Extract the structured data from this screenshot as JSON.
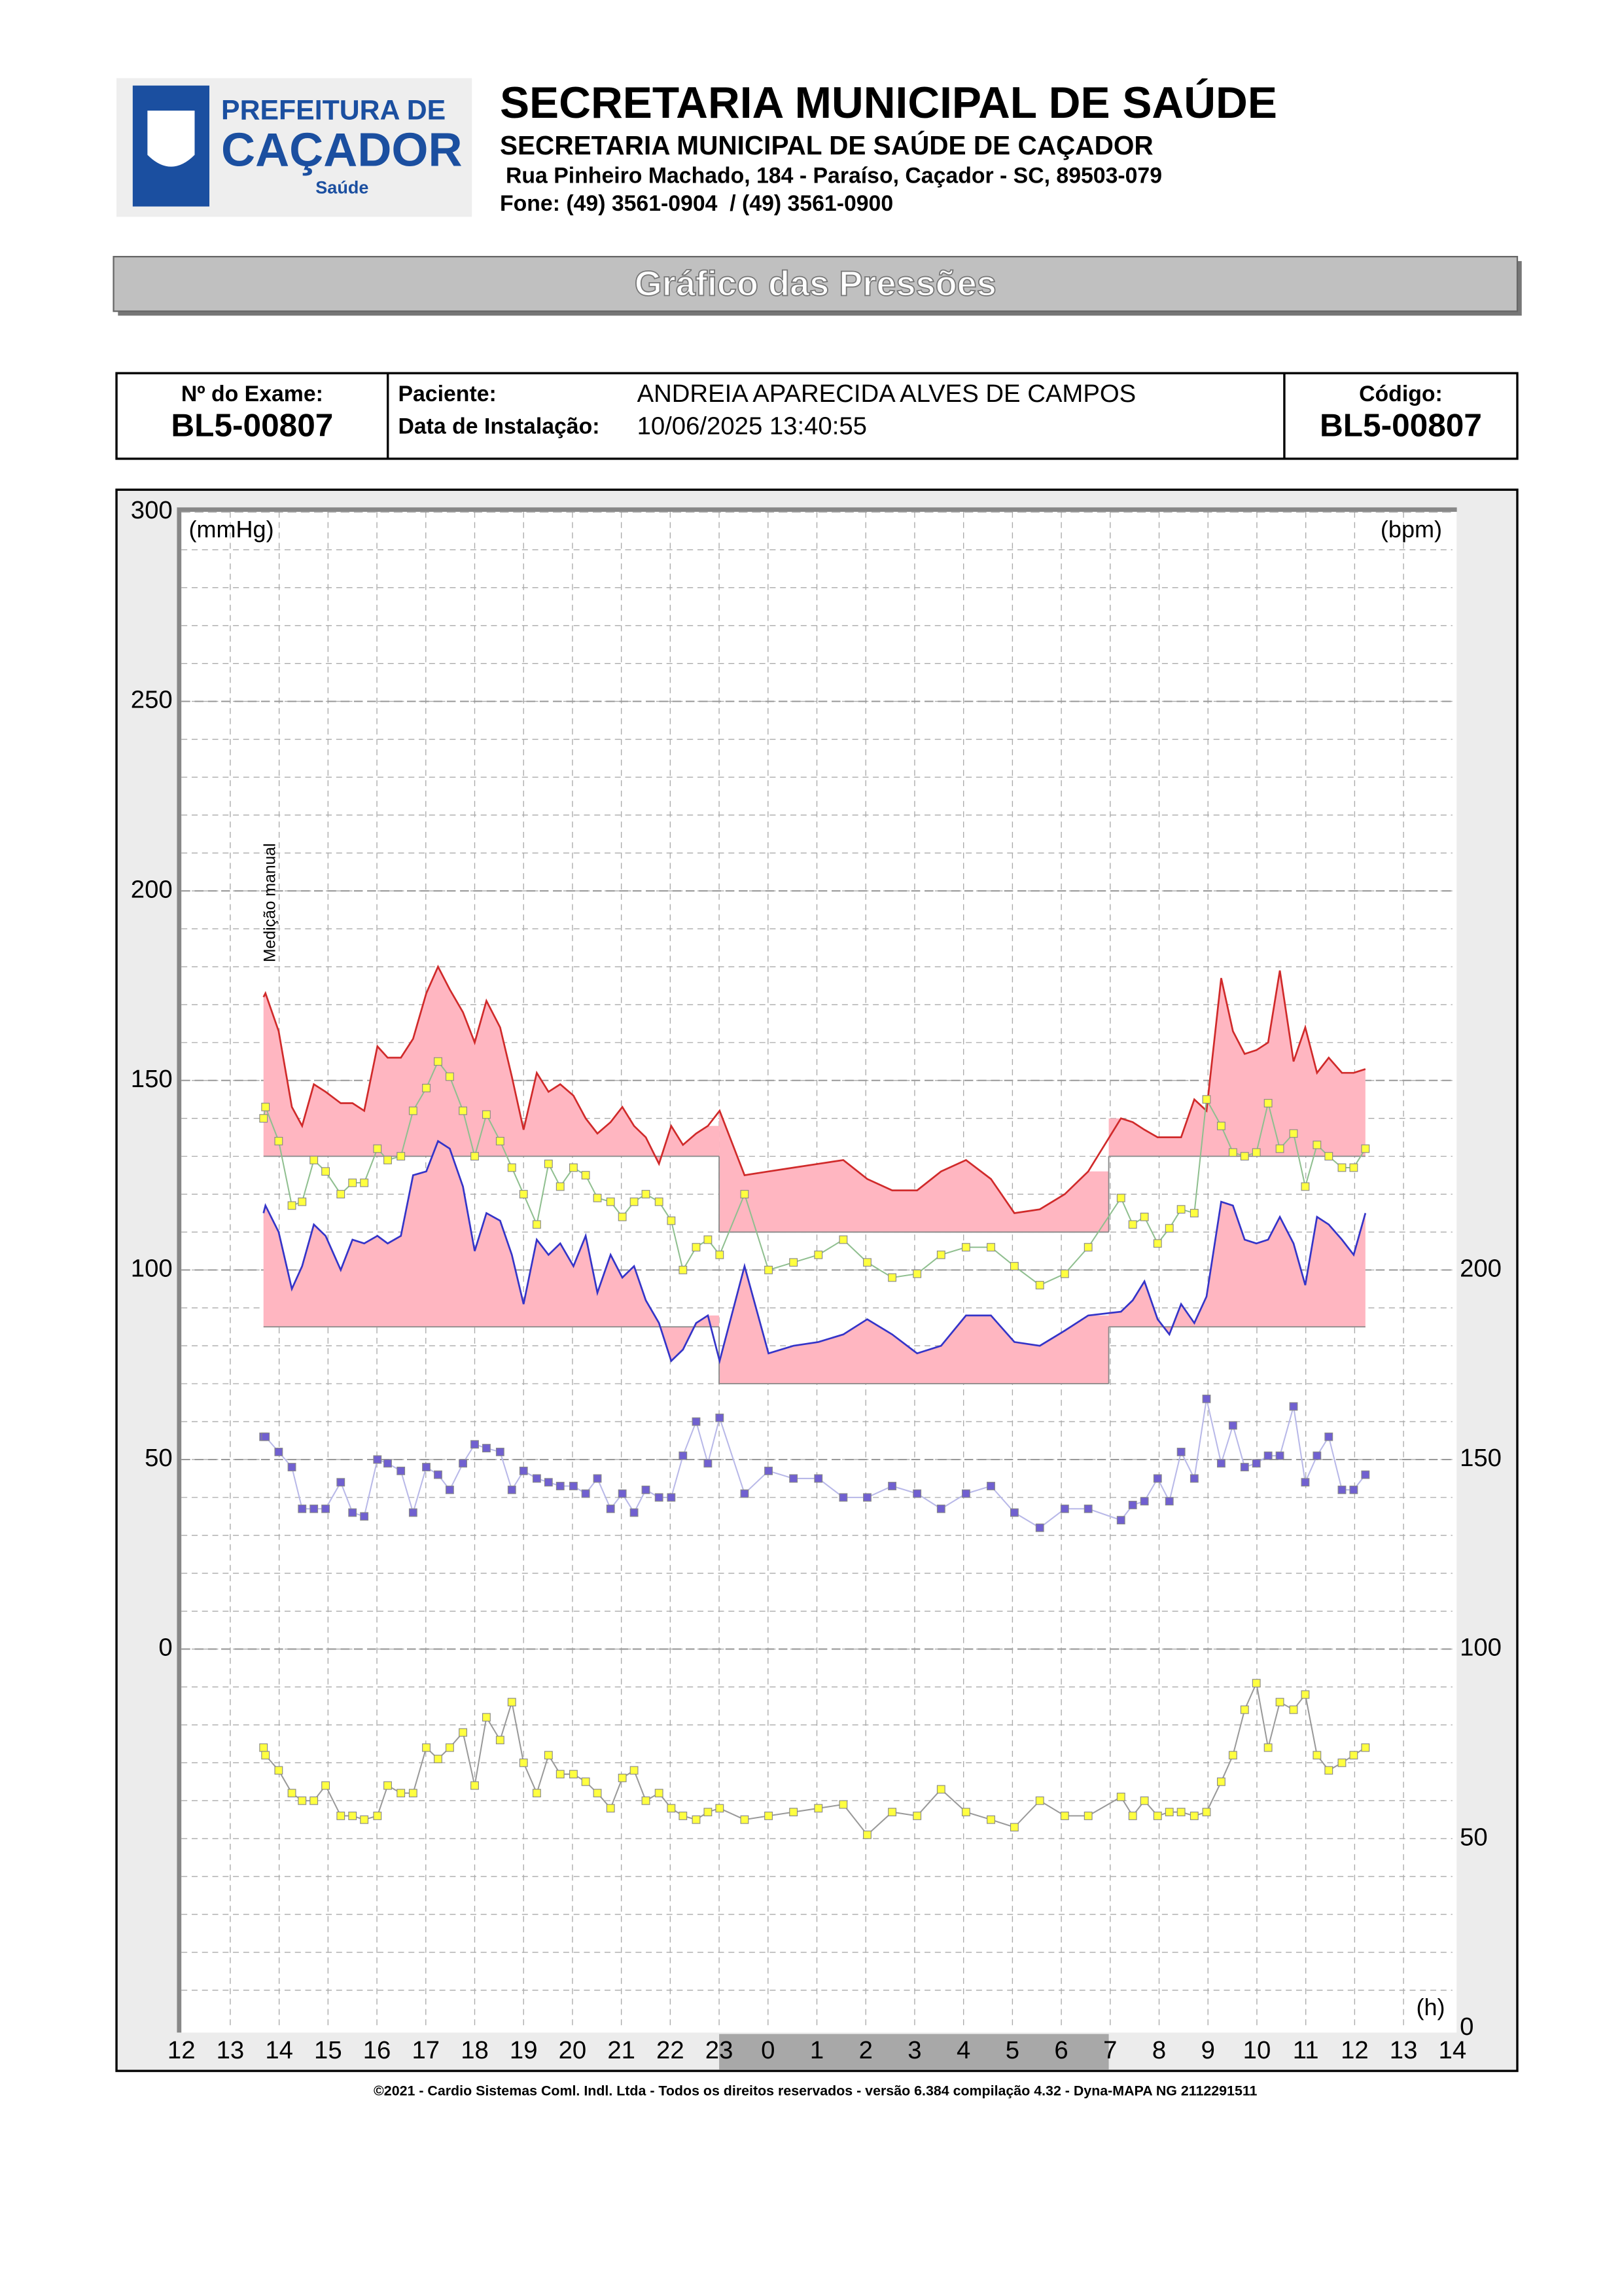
{
  "header": {
    "logo": {
      "line1": "PREFEITURA DE",
      "line2": "CAÇADOR",
      "line3": "Saúde"
    },
    "title": "SECRETARIA MUNICIPAL DE SAÚDE",
    "subtitle": "SECRETARIA MUNICIPAL DE SAÚDE DE CAÇADOR",
    "address": "Rua Pinheiro Machado, 184 - Paraíso, Caçador - SC, 89503-079",
    "phone": "Fone: (49) 3561-0904  / (49) 3561-0900"
  },
  "banner": "Gráfico das Pressões",
  "exam": {
    "exam_label": "Nº do Exame:",
    "exam_value": "BL5-00807",
    "patient_label": "Paciente:",
    "patient": "ANDREIA APARECIDA ALVES DE CAMPOS",
    "install_label": "Data de Instalação:",
    "install": "10/06/2025 13:40:55",
    "code_label": "Código:",
    "code_value": "BL5-00807"
  },
  "chart_data": {
    "type": "line",
    "y_label": "(mmHg)",
    "y2_label": "(bpm)",
    "x_label": "(h)",
    "annotation": "Medição manual",
    "xlim": [
      12,
      38
    ],
    "xticks": [
      12,
      13,
      14,
      15,
      16,
      17,
      18,
      19,
      20,
      21,
      22,
      23,
      {
        "value": 24,
        "label": "0"
      },
      {
        "value": 25,
        "label": "1"
      },
      {
        "value": 26,
        "label": "2"
      },
      {
        "value": 27,
        "label": "3"
      },
      {
        "value": 28,
        "label": "4"
      },
      {
        "value": 29,
        "label": "5"
      },
      {
        "value": 30,
        "label": "6"
      },
      {
        "value": 31,
        "label": "7"
      },
      {
        "value": 32,
        "label": "8"
      },
      {
        "value": 33,
        "label": "9"
      },
      {
        "value": 34,
        "label": "10"
      },
      {
        "value": 35,
        "label": "11"
      },
      {
        "value": 36,
        "label": "12"
      },
      {
        "value": 37,
        "label": "13"
      },
      {
        "value": 38,
        "label": "14"
      }
    ],
    "ylim": [
      -100,
      300
    ],
    "yticks": [
      0,
      50,
      100,
      150,
      200,
      250,
      300
    ],
    "y2lim": [
      0,
      400
    ],
    "y2ticks": [
      0,
      50,
      100,
      150,
      200
    ],
    "y_grid": [
      -90,
      -80,
      -70,
      -60,
      -50,
      -40,
      -30,
      -20,
      -10,
      0,
      10,
      20,
      30,
      40,
      50,
      60,
      70,
      80,
      90,
      100,
      110,
      120,
      130,
      140,
      150,
      160,
      170,
      180,
      190,
      200,
      210,
      220,
      230,
      240,
      250,
      260,
      270,
      280,
      290
    ],
    "limits": [
      {
        "start": 13.68,
        "end": 23.0,
        "systolic": 130,
        "diastolic": 85
      },
      {
        "start": 23.0,
        "end": 30.97,
        "systolic": 110,
        "diastolic": 70
      },
      {
        "start": 30.97,
        "end": 36.22,
        "systolic": 130,
        "diastolic": 85
      }
    ],
    "limit_color": "#ffb6c1",
    "x": [
      13.68,
      13.72,
      13.99,
      14.26,
      14.47,
      14.71,
      14.95,
      15.26,
      15.5,
      15.74,
      16.01,
      16.22,
      16.49,
      16.74,
      17.01,
      17.25,
      17.49,
      17.76,
      18.0,
      18.24,
      18.52,
      18.76,
      19.0,
      19.27,
      19.51,
      19.75,
      20.02,
      20.27,
      20.51,
      20.78,
      21.02,
      21.26,
      21.5,
      21.77,
      22.02,
      22.26,
      22.53,
      22.77,
      23.01,
      23.52,
      24.01,
      24.52,
      25.03,
      25.54,
      26.03,
      26.54,
      27.05,
      27.54,
      28.05,
      28.56,
      29.04,
      29.56,
      30.07,
      30.55,
      31.22,
      31.46,
      31.7,
      31.97,
      32.21,
      32.45,
      32.72,
      32.97,
      33.27,
      33.51,
      33.75,
      33.99,
      34.23,
      34.47,
      34.75,
      34.99,
      35.23,
      35.47,
      35.74,
      35.98,
      36.22
    ],
    "series": [
      {
        "color": "#d02a2a",
        "marker": "none",
        "values": [
          172,
          173,
          163,
          143,
          138,
          149,
          147,
          144,
          144,
          142,
          159,
          156,
          156,
          161,
          173,
          180,
          174,
          168,
          160,
          171,
          164,
          151,
          137,
          152,
          147,
          149,
          146,
          140,
          136,
          139,
          143,
          138,
          135,
          128,
          138,
          133,
          136,
          138,
          142,
          125,
          126,
          127,
          128,
          129,
          124,
          121,
          121,
          126,
          129,
          124,
          115,
          116,
          120,
          126,
          140,
          139,
          137,
          135,
          135,
          135,
          145,
          142,
          177,
          163,
          157,
          158,
          160,
          179,
          155,
          164,
          152,
          156,
          152,
          152,
          153
        ]
      },
      {
        "color": "#3434c8",
        "marker": "none",
        "values": [
          115,
          117,
          110,
          95,
          101,
          112,
          109,
          100,
          108,
          107,
          109,
          107,
          109,
          125,
          126,
          134,
          132,
          122,
          105,
          115,
          113,
          104,
          91,
          108,
          104,
          107,
          101,
          109,
          94,
          104,
          98,
          101,
          92,
          86,
          76,
          79,
          86,
          88,
          76,
          101,
          78,
          80,
          81,
          83,
          87,
          83,
          78,
          80,
          88,
          88,
          81,
          80,
          84,
          88,
          89,
          92,
          97,
          87,
          83,
          91,
          86,
          93,
          118,
          117,
          108,
          107,
          108,
          114,
          107,
          96,
          114,
          112,
          108,
          104,
          115
        ]
      },
      {
        "color": "#ffff40",
        "line_color": "#8fbf8f",
        "marker": "square",
        "values": [
          140,
          143,
          134,
          117,
          118,
          129,
          126,
          120,
          123,
          123,
          132,
          129,
          130,
          142,
          148,
          155,
          151,
          142,
          130,
          141,
          134,
          127,
          120,
          112,
          128,
          122,
          127,
          125,
          119,
          118,
          114,
          118,
          120,
          118,
          113,
          100,
          106,
          108,
          104,
          120,
          100,
          102,
          104,
          108,
          102,
          98,
          99,
          104,
          106,
          106,
          101,
          96,
          99,
          106,
          119,
          112,
          114,
          107,
          111,
          116,
          115,
          145,
          138,
          131,
          130,
          131,
          144,
          132,
          136,
          122,
          133,
          130,
          127,
          127,
          132
        ]
      },
      {
        "color": "#7060d0",
        "line_color": "#b8b8e8",
        "marker": "square",
        "values": [
          56,
          56,
          52,
          48,
          37,
          37,
          37,
          44,
          36,
          35,
          50,
          49,
          47,
          36,
          48,
          46,
          42,
          49,
          54,
          53,
          52,
          42,
          47,
          45,
          44,
          43,
          43,
          41,
          45,
          37,
          41,
          36,
          42,
          40,
          40,
          51,
          60,
          49,
          61,
          41,
          47,
          45,
          45,
          40,
          40,
          43,
          41,
          37,
          41,
          43,
          36,
          32,
          37,
          37,
          34,
          38,
          39,
          45,
          39,
          52,
          45,
          66,
          49,
          59,
          48,
          49,
          51,
          51,
          64,
          44,
          51,
          56,
          42,
          42,
          46
        ]
      },
      {
        "color": "#ffff40",
        "line_color": "#999999",
        "marker": "square",
        "axis": "y2",
        "values": [
          74,
          72,
          68,
          62,
          60,
          60,
          64,
          56,
          56,
          55,
          56,
          64,
          62,
          62,
          74,
          71,
          74,
          78,
          64,
          82,
          76,
          86,
          70,
          62,
          72,
          67,
          67,
          65,
          62,
          58,
          66,
          68,
          60,
          62,
          58,
          56,
          55,
          57,
          58,
          55,
          56,
          57,
          58,
          59,
          51,
          57,
          56,
          63,
          57,
          55,
          53,
          60,
          56,
          56,
          61,
          56,
          60,
          56,
          57,
          57,
          56,
          57,
          65,
          72,
          84,
          91,
          74,
          86,
          84,
          88,
          72,
          68,
          70,
          72,
          74
        ]
      }
    ]
  },
  "footer": "©2021 - Cardio Sistemas Coml. Indl. Ltda - Todos os direitos reservados - versão 6.384 compilação 4.32 - Dyna-MAPA NG 2112291511"
}
